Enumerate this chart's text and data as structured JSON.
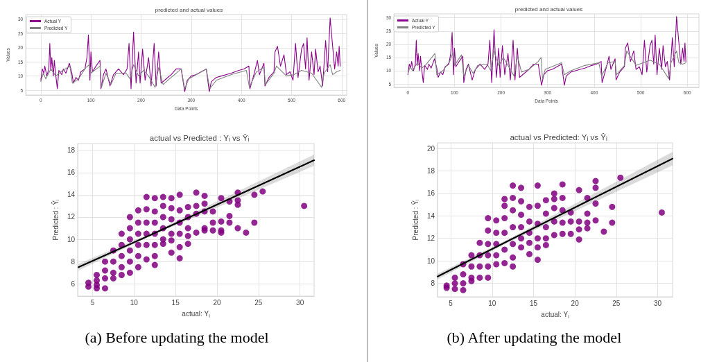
{
  "chart_data": [
    {
      "type": "line",
      "title": "predicted and actual values",
      "xlabel": "Data Points",
      "ylabel": "Values",
      "xlim": [
        -30,
        610
      ],
      "xticks": [
        0,
        100,
        200,
        300,
        400,
        500,
        600
      ],
      "ylim": [
        3.3,
        31.7
      ],
      "yticks": [
        5,
        10,
        15,
        20,
        25,
        30
      ],
      "grid": true,
      "legend": "top left",
      "marker": "none",
      "line_style": "solid",
      "series": [
        {
          "name": "Actual Y",
          "color": "#8b008b",
          "x": [
            0,
            3,
            6,
            8,
            12,
            16,
            18,
            20,
            22,
            25,
            27,
            30,
            33,
            36,
            42,
            45,
            50,
            57,
            62,
            65,
            70,
            75,
            80,
            88,
            92,
            95,
            98,
            100,
            103,
            110,
            118,
            120,
            125,
            130,
            138,
            145,
            155,
            165,
            172,
            176,
            180,
            185,
            190,
            195,
            198,
            203,
            208,
            215,
            220,
            226,
            230,
            235,
            240,
            250,
            260,
            270,
            280,
            287,
            292,
            300,
            310,
            320,
            330,
            336,
            340,
            350,
            360,
            370,
            380,
            395,
            405,
            415,
            417,
            425,
            432,
            436,
            445,
            447,
            455,
            465,
            467,
            472,
            478,
            485,
            490,
            497,
            503,
            508,
            513,
            520,
            524,
            528,
            531,
            535,
            540,
            545,
            548,
            553,
            557,
            562,
            568,
            572,
            577,
            582,
            586,
            590,
            593,
            595,
            597
          ],
          "values": [
            8.5,
            12.5,
            11,
            13.5,
            10,
            12.5,
            21.5,
            12,
            16.5,
            10,
            15.5,
            10,
            5.5,
            12,
            10.5,
            12.5,
            11,
            14.5,
            11,
            7.5,
            9.5,
            8.5,
            11.5,
            12.5,
            16.5,
            24.5,
            8.5,
            18.5,
            11.5,
            13.5,
            15.5,
            5.5,
            10.5,
            12.5,
            6.5,
            10.5,
            12.5,
            10.5,
            12.5,
            21.5,
            5.5,
            25.5,
            7.5,
            18.5,
            7.5,
            19.5,
            8.5,
            16.5,
            6.5,
            21.5,
            6.5,
            18.5,
            7.5,
            9,
            10.5,
            12.5,
            12.5,
            4.5,
            8.5,
            10,
            10.5,
            11.5,
            12.5,
            4.5,
            8,
            9.5,
            10,
            10.5,
            11,
            12,
            12.5,
            13.5,
            5.5,
            10.5,
            15.5,
            10.5,
            14.5,
            6.5,
            9.5,
            11.5,
            18.5,
            20.5,
            13.5,
            17.5,
            10.5,
            11.5,
            8.5,
            21.5,
            9.5,
            19.5,
            21.5,
            12.5,
            23.5,
            8.5,
            18.5,
            10.5,
            19.5,
            11.5,
            13.5,
            6.5,
            22.5,
            11.5,
            30.5,
            20.5,
            12.5,
            18.5,
            13.5,
            20.5,
            13.5
          ]
        },
        {
          "name": "Predicted Y",
          "color": "#808080",
          "x": [
            0,
            5,
            10,
            20,
            30,
            40,
            58,
            63,
            75,
            90,
            97,
            100,
            118,
            121,
            130,
            140,
            150,
            170,
            178,
            185,
            195,
            205,
            215,
            228,
            235,
            244,
            260,
            280,
            287,
            295,
            330,
            337,
            350,
            380,
            410,
            416,
            430,
            445,
            448,
            465,
            470,
            490,
            505,
            520,
            540,
            560,
            565,
            577,
            582,
            590,
            597
          ],
          "values": [
            8,
            11,
            9,
            12.5,
            10,
            11.5,
            13.5,
            7.5,
            9,
            13,
            14,
            11,
            13.5,
            6,
            11,
            7,
            11,
            11,
            9,
            14,
            10,
            12,
            10,
            6,
            13,
            7,
            9.5,
            12.5,
            5.5,
            9,
            12.5,
            5.5,
            8.5,
            10.5,
            12,
            6,
            11.5,
            13,
            7,
            11,
            13.5,
            10,
            10.5,
            12,
            11,
            6,
            11,
            14,
            10.5,
            11.5,
            12
          ]
        }
      ]
    },
    {
      "type": "line",
      "title": "predicted and actual values",
      "xlabel": "Data Points",
      "ylabel": "Values",
      "xlim": [
        -30,
        625
      ],
      "xticks": [
        0,
        100,
        200,
        300,
        400,
        500,
        600
      ],
      "ylim": [
        3.7,
        31.5
      ],
      "yticks": [
        5,
        10,
        15,
        20,
        25,
        30
      ],
      "grid": true,
      "legend": "top left",
      "marker": "none",
      "line_style": "solid",
      "series": [
        {
          "name": "Actual Y",
          "color": "#8b008b",
          "x": [
            0,
            3,
            6,
            8,
            12,
            16,
            18,
            20,
            22,
            25,
            27,
            30,
            33,
            36,
            42,
            45,
            50,
            57,
            62,
            65,
            70,
            75,
            80,
            88,
            92,
            95,
            98,
            100,
            103,
            110,
            118,
            120,
            125,
            130,
            138,
            145,
            155,
            165,
            172,
            176,
            180,
            185,
            190,
            195,
            198,
            203,
            208,
            215,
            220,
            226,
            230,
            235,
            240,
            250,
            260,
            270,
            280,
            287,
            292,
            300,
            310,
            320,
            330,
            336,
            340,
            350,
            360,
            370,
            380,
            395,
            405,
            415,
            417,
            425,
            432,
            436,
            445,
            447,
            455,
            465,
            467,
            472,
            478,
            485,
            490,
            497,
            503,
            508,
            513,
            520,
            524,
            528,
            531,
            535,
            540,
            545,
            548,
            553,
            557,
            562,
            568,
            572,
            577,
            582,
            586,
            590,
            593,
            595,
            597
          ],
          "values": [
            8.5,
            12.5,
            11,
            13.5,
            10,
            12.5,
            21.5,
            12,
            16.5,
            10,
            15.5,
            10,
            5.5,
            12,
            10.5,
            12.5,
            11,
            14.5,
            11,
            7.5,
            9.5,
            8.5,
            11.5,
            12.5,
            16.5,
            24.5,
            8.5,
            18.5,
            11.5,
            13.5,
            15.5,
            5.5,
            10.5,
            12.5,
            6.5,
            10.5,
            12.5,
            10.5,
            12.5,
            21.5,
            5.5,
            25.5,
            7.5,
            18.5,
            7.5,
            19.5,
            8.5,
            16.5,
            6.5,
            21.5,
            6.5,
            18.5,
            7.5,
            9,
            10.5,
            12.5,
            12.5,
            4.5,
            8.5,
            10,
            10.5,
            11.5,
            12.5,
            4.5,
            8,
            9.5,
            10,
            10.5,
            11,
            12,
            12.5,
            13.5,
            5.5,
            10.5,
            15.5,
            10.5,
            14.5,
            6.5,
            9.5,
            11.5,
            18.5,
            20.5,
            13.5,
            17.5,
            10.5,
            11.5,
            8.5,
            21.5,
            9.5,
            19.5,
            21.5,
            12.5,
            23.5,
            8.5,
            18.5,
            10.5,
            19.5,
            11.5,
            13.5,
            6.5,
            22.5,
            11.5,
            30.5,
            20.5,
            12.5,
            18.5,
            13.5,
            20.5,
            13.5
          ]
        },
        {
          "name": "Predicted Y",
          "color": "#808080",
          "x": [
            0,
            5,
            10,
            20,
            30,
            40,
            58,
            62,
            75,
            90,
            97,
            100,
            115,
            120,
            130,
            140,
            150,
            170,
            178,
            185,
            195,
            205,
            215,
            228,
            235,
            244,
            260,
            280,
            286,
            289,
            295,
            330,
            336,
            350,
            380,
            410,
            416,
            430,
            445,
            448,
            465,
            470,
            490,
            505,
            520,
            540,
            560,
            565,
            577,
            582,
            590,
            597
          ],
          "values": [
            9,
            11.5,
            10,
            13,
            11,
            12.5,
            16.5,
            8.5,
            10,
            13.5,
            17,
            12,
            16,
            8,
            12,
            9,
            12,
            12.5,
            10,
            17.5,
            12,
            15,
            12,
            8,
            15.5,
            9.5,
            10.5,
            13.5,
            15,
            7,
            10.5,
            13,
            8.5,
            10,
            12,
            13,
            8,
            13,
            13.5,
            8.5,
            12,
            17.5,
            12,
            13,
            14,
            12.5,
            7,
            13,
            17.5,
            13,
            12.5,
            13
          ]
        }
      ]
    },
    {
      "type": "scatter",
      "title": "actual vs Predicted : Y$_{i}$ vs Ŷ$_{i}$",
      "xlabel": "actual: Y$_{i}$",
      "ylabel": "Predicted : Ŷ$_{i}$",
      "xlim": [
        3.2,
        31.7
      ],
      "xticks": [
        5,
        10,
        15,
        20,
        25,
        30
      ],
      "ylim": [
        4.9,
        18.6
      ],
      "yticks": [
        6,
        8,
        10,
        12,
        14,
        16,
        18
      ],
      "grid": true,
      "marker": "circle",
      "annotations": [
        "(a) Before updating the model"
      ],
      "series": [
        {
          "color": "#800080",
          "x": [
            4.5,
            4.5,
            5.5,
            5.5,
            5.5,
            5.5,
            6.5,
            6.5,
            6.5,
            6.5,
            7.5,
            7.5,
            7.5,
            7.5,
            8.5,
            8.5,
            8.5,
            8.5,
            8.5,
            9.5,
            9.5,
            9.5,
            9.5,
            9.5,
            9.5,
            10.5,
            10.5,
            10.5,
            10.5,
            10.5,
            10.5,
            11.5,
            11.5,
            11.5,
            11.5,
            11.5,
            11.5,
            12.5,
            12.5,
            12.5,
            12.5,
            12.5,
            12.5,
            12.5,
            13.5,
            13.5,
            13.5,
            13.5,
            13.5,
            13.5,
            14.5,
            14.5,
            14.5,
            14.5,
            14.5,
            14.5,
            15.5,
            15.5,
            15.5,
            15.5,
            15.5,
            15.5,
            16.5,
            16.5,
            16.5,
            16.5,
            16.5,
            17.5,
            17.5,
            17.5,
            17.5,
            18.5,
            18.5,
            18.5,
            18.5,
            18.5,
            19.5,
            19.5,
            19.5,
            20.5,
            20.5,
            20.5,
            20.5,
            21.5,
            21.5,
            21.5,
            22.5,
            22.5,
            22.5,
            22.5,
            23.5,
            24.5,
            24.5,
            25.5,
            30.5
          ],
          "values": [
            6.1,
            5.75,
            6.8,
            6.3,
            5.9,
            5.6,
            8.0,
            7.2,
            6.5,
            5.6,
            9.0,
            8.0,
            7.0,
            6.5,
            10.5,
            9.5,
            8.5,
            7.5,
            6.8,
            12.0,
            11.0,
            10.0,
            9.0,
            8.0,
            7.0,
            12.6,
            11.5,
            10.5,
            9.5,
            8.5,
            7.5,
            13.8,
            12.7,
            11.5,
            10.5,
            9.5,
            8.2,
            13.7,
            12.5,
            11.5,
            10.5,
            9.5,
            8.5,
            7.7,
            13.8,
            13.0,
            12.0,
            11.0,
            10.0,
            9.6,
            13.7,
            12.8,
            11.8,
            10.5,
            9.9,
            8.8,
            14.0,
            12.6,
            11.5,
            10.5,
            9.3,
            8.3,
            12.9,
            12.0,
            11.0,
            10.3,
            9.6,
            14.2,
            13.0,
            12.3,
            10.6,
            13.9,
            13.2,
            12.5,
            11.0,
            10.8,
            12.5,
            11.5,
            10.8,
            13.7,
            11.6,
            10.8,
            10.6,
            13.4,
            12.1,
            11.5,
            14.2,
            13.5,
            13.1,
            11.0,
            10.6,
            14.0,
            11.5,
            14.3,
            13.0
          ]
        },
        {
          "type": "line",
          "marker": "none",
          "color": "#000000",
          "x": [
            3.3,
            12,
            31.7
          ],
          "values": [
            7.5,
            10.4,
            17.1
          ],
          "lower": [
            7.2,
            10.3,
            16.6
          ],
          "upper": [
            7.8,
            10.55,
            17.6
          ]
        }
      ]
    },
    {
      "type": "scatter",
      "title": "actual vs Predicted: Y$_{i}$ vs Ŷ$_{i}$",
      "xlabel": "actual: Y$_{i}$",
      "ylabel": "Predicted : Ŷ$_{i}$",
      "xlim": [
        3.4,
        31.8
      ],
      "xticks": [
        5,
        10,
        15,
        20,
        25,
        30
      ],
      "ylim": [
        6.8,
        20.5
      ],
      "yticks": [
        8,
        10,
        12,
        14,
        16,
        18,
        20
      ],
      "grid": true,
      "marker": "circle",
      "annotations": [
        "(b) After updating the model"
      ],
      "series": [
        {
          "color": "#800080",
          "x": [
            4.5,
            4.5,
            5.5,
            5.5,
            5.5,
            6.5,
            6.5,
            6.5,
            6.5,
            7.5,
            7.5,
            7.5,
            7.5,
            8.5,
            8.5,
            8.5,
            8.5,
            9.5,
            9.5,
            9.5,
            9.5,
            9.5,
            9.5,
            10.5,
            10.5,
            10.5,
            10.5,
            10.5,
            11.5,
            11.5,
            11.5,
            11.5,
            11.5,
            11.5,
            12.5,
            12.5,
            12.5,
            12.5,
            12.5,
            12.5,
            12.5,
            13.5,
            13.5,
            13.5,
            13.5,
            13.5,
            13.5,
            14.5,
            14.5,
            14.5,
            14.5,
            14.5,
            15.5,
            15.5,
            15.5,
            15.5,
            15.5,
            15.5,
            16.5,
            16.5,
            16.5,
            16.5,
            16.5,
            17.5,
            17.5,
            17.5,
            17.5,
            17.5,
            18.5,
            18.5,
            18.5,
            18.5,
            18.5,
            19.5,
            19.5,
            19.5,
            20.5,
            20.5,
            20.5,
            20.5,
            21.5,
            21.5,
            21.5,
            21.5,
            22.5,
            22.5,
            22.5,
            22.5,
            23.5,
            24.5,
            24.5,
            25.5,
            30.5
          ],
          "values": [
            7.8,
            7.6,
            8.5,
            8.0,
            7.5,
            9.7,
            8.8,
            8.0,
            7.4,
            10.5,
            9.5,
            8.5,
            8.2,
            11.6,
            10.5,
            9.5,
            8.5,
            13.8,
            12.7,
            11.5,
            10.5,
            9.5,
            8.5,
            13.6,
            12.5,
            11.5,
            10.5,
            9.7,
            15.5,
            14.9,
            13.8,
            12.5,
            11.0,
            9.8,
            16.7,
            15.6,
            14.5,
            13.0,
            11.5,
            10.3,
            9.5,
            16.5,
            15.3,
            14.1,
            13.0,
            12.0,
            11.2,
            14.8,
            13.5,
            12.5,
            11.6,
            10.6,
            16.7,
            14.9,
            13.3,
            12.0,
            11.2,
            10.1,
            15.4,
            14.2,
            13.0,
            12.0,
            11.4,
            16.0,
            15.5,
            14.7,
            13.5,
            12.3,
            16.8,
            15.6,
            14.5,
            13.4,
            12.4,
            14.3,
            13.5,
            12.4,
            16.3,
            13.5,
            12.8,
            11.9,
            15.6,
            14.2,
            13.4,
            12.9,
            17.1,
            16.5,
            15.1,
            13.6,
            12.6,
            14.8,
            13.4,
            17.4,
            14.3
          ]
        },
        {
          "type": "line",
          "marker": "none",
          "color": "#000000",
          "x": [
            3.4,
            12,
            31.8
          ],
          "values": [
            8.6,
            11.8,
            19.1
          ],
          "lower": [
            8.35,
            11.65,
            18.5
          ],
          "upper": [
            8.85,
            11.95,
            19.7
          ]
        }
      ]
    }
  ]
}
